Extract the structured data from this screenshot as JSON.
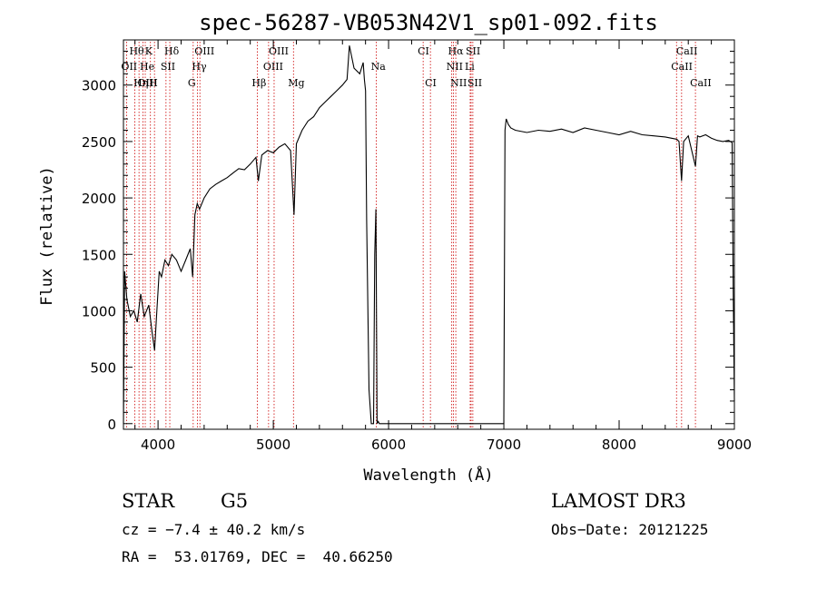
{
  "chart_data": {
    "type": "line",
    "title": "spec-56287-VB053N42V1_sp01-092.fits",
    "xlabel": "Wavelength (Å)",
    "ylabel": "Flux (relative)",
    "xlim": [
      3700,
      9000
    ],
    "ylim": [
      -50,
      3400
    ],
    "x_ticks": [
      4000,
      5000,
      6000,
      7000,
      8000,
      9000
    ],
    "y_ticks": [
      0,
      500,
      1000,
      1500,
      2000,
      2500,
      3000
    ],
    "grid": false,
    "series": [
      {
        "name": "flux",
        "x": [
          3700,
          3710,
          3730,
          3760,
          3790,
          3820,
          3850,
          3880,
          3920,
          3950,
          3970,
          3990,
          4010,
          4030,
          4060,
          4090,
          4120,
          4160,
          4200,
          4240,
          4280,
          4300,
          4320,
          4340,
          4360,
          4400,
          4450,
          4500,
          4550,
          4600,
          4650,
          4700,
          4750,
          4800,
          4850,
          4870,
          4900,
          4950,
          5000,
          5050,
          5100,
          5150,
          5180,
          5200,
          5250,
          5300,
          5350,
          5400,
          5450,
          5500,
          5550,
          5600,
          5640,
          5660,
          5700,
          5750,
          5780,
          5790,
          5800,
          5810,
          5830,
          5850,
          5870,
          5880,
          5890,
          5900,
          5910,
          5920,
          5940,
          7000,
          7010,
          7020,
          7040,
          7060,
          7100,
          7200,
          7300,
          7400,
          7500,
          7600,
          7700,
          7800,
          7900,
          8000,
          8100,
          8200,
          8300,
          8400,
          8500,
          8520,
          8542,
          8560,
          8600,
          8662,
          8680,
          8700,
          8750,
          8800,
          8850,
          8900,
          8950,
          8980,
          8990,
          9000
        ],
        "y": [
          0,
          1350,
          1100,
          950,
          1000,
          900,
          1150,
          950,
          1050,
          800,
          650,
          1000,
          1350,
          1300,
          1450,
          1400,
          1500,
          1450,
          1350,
          1450,
          1550,
          1300,
          1850,
          1950,
          1900,
          2000,
          2080,
          2120,
          2150,
          2180,
          2220,
          2260,
          2250,
          2300,
          2360,
          2150,
          2380,
          2420,
          2400,
          2450,
          2480,
          2420,
          1850,
          2480,
          2600,
          2680,
          2720,
          2800,
          2850,
          2900,
          2950,
          3000,
          3050,
          3350,
          3150,
          3100,
          3200,
          3050,
          2950,
          1800,
          300,
          0,
          0,
          1500,
          1900,
          0,
          20,
          0,
          0,
          0,
          2600,
          2700,
          2650,
          2620,
          2600,
          2580,
          2600,
          2590,
          2610,
          2580,
          2620,
          2600,
          2580,
          2560,
          2590,
          2560,
          2550,
          2540,
          2520,
          2500,
          2150,
          2500,
          2550,
          2280,
          2550,
          2540,
          2560,
          2530,
          2510,
          2500,
          2510,
          2490,
          1200,
          200
        ]
      }
    ],
    "line_markers": [
      {
        "label": "Hθ",
        "x": 3798,
        "row": 0
      },
      {
        "label": "OII",
        "x": 3727,
        "row": 1
      },
      {
        "label": "OIII",
        "x": 3869,
        "row": 2
      },
      {
        "label": "K",
        "x": 3934,
        "row": 0
      },
      {
        "label": "He",
        "x": 3889,
        "row": 1
      },
      {
        "label": "Hη",
        "x": 3835,
        "row": 2
      },
      {
        "label": "Hδ",
        "x": 4102,
        "row": 0
      },
      {
        "label": "SII",
        "x": 4069,
        "row": 1
      },
      {
        "label": "H",
        "x": 3969,
        "row": 2
      },
      {
        "label": "OIII",
        "x": 4363,
        "row": 0
      },
      {
        "label": "Hγ",
        "x": 4341,
        "row": 1
      },
      {
        "label": "G",
        "x": 4305,
        "row": 2
      },
      {
        "label": "OIII",
        "x": 5007,
        "row": 0
      },
      {
        "label": "OIII",
        "x": 4959,
        "row": 1
      },
      {
        "label": "Hβ",
        "x": 4861,
        "row": 2
      },
      {
        "label": "Mg",
        "x": 5175,
        "row": 2
      },
      {
        "label": "Na",
        "x": 5894,
        "row": 1
      },
      {
        "label": "CI",
        "x": 6300,
        "row": 0
      },
      {
        "label": "CI",
        "x": 6363,
        "row": 2
      },
      {
        "label": "Hα",
        "x": 6563,
        "row": 0
      },
      {
        "label": "NII",
        "x": 6548,
        "row": 1
      },
      {
        "label": "NII",
        "x": 6583,
        "row": 2
      },
      {
        "label": "SII",
        "x": 6716,
        "row": 0
      },
      {
        "label": "Li",
        "x": 6708,
        "row": 1
      },
      {
        "label": "SII",
        "x": 6731,
        "row": 2
      },
      {
        "label": "CaII",
        "x": 8542,
        "row": 0
      },
      {
        "label": "CaII",
        "x": 8498,
        "row": 1
      },
      {
        "label": "CaII",
        "x": 8662,
        "row": 2
      }
    ],
    "marker_color": "#cc0000",
    "line_color": "#000000"
  },
  "info": {
    "class": "STAR",
    "subclass": "G5",
    "survey": "LAMOST DR3",
    "cz": "cz = −7.4 ± 40.2 km/s",
    "obs_date": "Obs−Date: 20121225",
    "coords": "RA =  53.01769, DEC =  40.66250"
  }
}
